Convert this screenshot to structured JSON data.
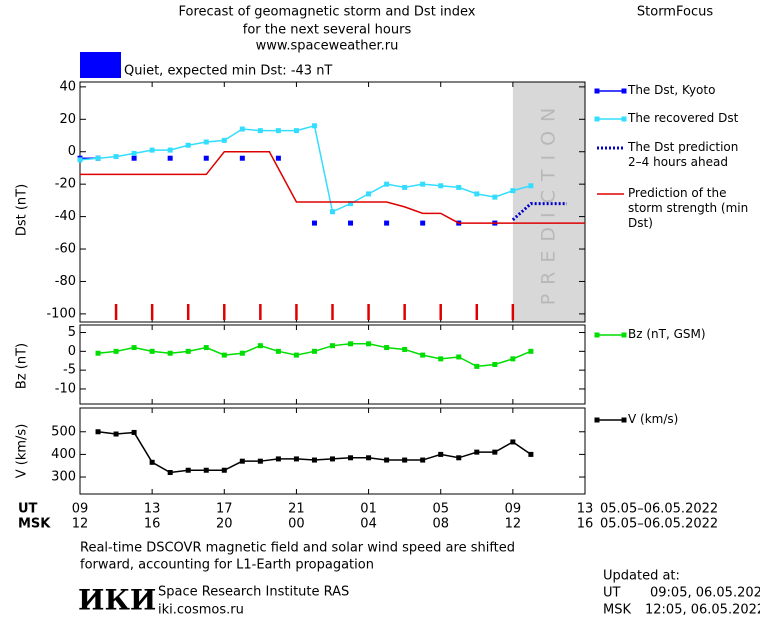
{
  "header": {
    "title": [
      "Forecast of geomagnetic storm and Dst index",
      "for the next several hours",
      "www.spaceweather.ru"
    ],
    "brand": "StormFocus",
    "status": {
      "color": "#0000ff",
      "text": "Quiet, expected min Dst: -43 nT"
    }
  },
  "chart_data": [
    {
      "type": "line",
      "ylabel": "Dst (nT)",
      "ylim": [
        -105,
        43
      ],
      "yticks": [
        40,
        20,
        0,
        -20,
        -40,
        -60,
        -80,
        -100
      ],
      "shade": {
        "x": [
          24,
          28
        ],
        "color": "#d8d8d8",
        "label": "PREDICTION"
      },
      "markers": {
        "color": "#dd0000",
        "x": [
          2,
          4,
          6,
          8,
          10,
          12,
          14,
          16,
          18,
          20,
          22,
          24
        ]
      },
      "series": [
        {
          "name": "The Dst, Kyoto",
          "color": "#0000ff",
          "marker": true,
          "x": [
            0,
            1,
            2,
            3,
            4,
            5,
            6,
            7,
            8,
            9,
            10,
            11,
            12,
            13,
            14,
            15,
            16,
            17,
            18,
            19,
            20,
            21,
            22,
            23
          ],
          "values": [
            -4,
            -4,
            null,
            -4,
            null,
            -4,
            null,
            -4,
            null,
            -4,
            null,
            -4,
            null,
            -44,
            null,
            -44,
            null,
            -44,
            null,
            -44,
            null,
            -44,
            null,
            -44
          ]
        },
        {
          "name": "The recovered Dst",
          "color": "#33ddff",
          "marker": true,
          "x": [
            0,
            1,
            2,
            3,
            4,
            5,
            6,
            7,
            8,
            9,
            10,
            11,
            12,
            13,
            14,
            15,
            16,
            17,
            18,
            19,
            20,
            21,
            22,
            23,
            24,
            25
          ],
          "values": [
            -5,
            -4,
            -3,
            -1,
            1,
            1,
            4,
            6,
            7,
            14,
            13,
            13,
            13,
            16,
            -37,
            -32,
            -26,
            -20,
            -22,
            -20,
            -21,
            -22,
            -26,
            -28,
            -24,
            -21
          ]
        },
        {
          "name": "The Dst prediction\n2–4 hours ahead",
          "color": "#0000cc",
          "dash": true,
          "x": [
            24,
            25,
            26,
            27
          ],
          "values": [
            -42,
            -32,
            -32,
            -32
          ]
        },
        {
          "name": "Prediction of the storm strength (min Dst)",
          "color": "#dd0000",
          "x": [
            0,
            7,
            8,
            10.5,
            12,
            17,
            18,
            19,
            20,
            21,
            28
          ],
          "values": [
            -14,
            -14,
            0,
            0,
            -31,
            -31,
            -34,
            -38,
            -38,
            -44,
            -44
          ]
        }
      ]
    },
    {
      "type": "line",
      "ylabel": "Bz (nT)",
      "ylim": [
        -14,
        7
      ],
      "yticks": [
        5,
        0,
        -5,
        -10
      ],
      "series": [
        {
          "name": "Bz (nT, GSM)",
          "color": "#00dd00",
          "marker": true,
          "x": [
            1,
            2,
            3,
            4,
            5,
            6,
            7,
            8,
            9,
            10,
            11,
            12,
            13,
            14,
            15,
            16,
            17,
            18,
            19,
            20,
            21,
            22,
            23,
            24,
            25
          ],
          "values": [
            -0.5,
            0,
            1,
            0,
            -0.5,
            0,
            1,
            -1,
            -0.5,
            1.5,
            0,
            -1,
            0,
            1.5,
            2,
            2,
            1,
            0.5,
            -1,
            -2,
            -1.5,
            -4,
            -3.5,
            -2,
            0
          ]
        }
      ]
    },
    {
      "type": "line",
      "ylabel": "V (km/s)",
      "ylim": [
        225,
        605
      ],
      "yticks": [
        500,
        400,
        300
      ],
      "xlim": [
        0,
        28
      ],
      "xlabels": [
        "UT",
        "MSK"
      ],
      "xdate": "05.05–06.05.2022",
      "xticks": [
        {
          "value": 0,
          "label": "09"
        },
        {
          "value": 4,
          "label": "13"
        },
        {
          "value": 8,
          "label": "17"
        },
        {
          "value": 12,
          "label": "21"
        },
        {
          "value": 16,
          "label": "01"
        },
        {
          "value": 20,
          "label": "05"
        },
        {
          "value": 24,
          "label": "09"
        },
        {
          "value": 28,
          "label": "13"
        }
      ],
      "xticks_msk": [
        {
          "value": 0,
          "label": "12"
        },
        {
          "value": 4,
          "label": "16"
        },
        {
          "value": 8,
          "label": "20"
        },
        {
          "value": 12,
          "label": "00"
        },
        {
          "value": 16,
          "label": "04"
        },
        {
          "value": 20,
          "label": "08"
        },
        {
          "value": 24,
          "label": "12"
        },
        {
          "value": 28,
          "label": "16"
        }
      ],
      "series": [
        {
          "name": "V (km/s)",
          "color": "#000000",
          "marker": true,
          "x": [
            1,
            2,
            3,
            4,
            5,
            6,
            7,
            8,
            9,
            10,
            11,
            12,
            13,
            14,
            15,
            16,
            17,
            18,
            19,
            20,
            21,
            22,
            23,
            24,
            25
          ],
          "values": [
            500,
            490,
            497,
            365,
            320,
            330,
            330,
            330,
            370,
            370,
            380,
            380,
            375,
            380,
            385,
            385,
            375,
            375,
            375,
            400,
            385,
            410,
            410,
            455,
            400
          ]
        }
      ]
    }
  ],
  "footer": {
    "note": [
      "Real-time DSCOVR magnetic field and solar wind speed are shifted",
      "forward, accounting for L1-Earth propagation"
    ],
    "institute": {
      "logo": "ИКИ",
      "name": "Space Research Institute RAS",
      "url": "iki.cosmos.ru"
    },
    "updated": {
      "label": "Updated at:",
      "ut_label": "UT",
      "ut_time": "09:05, 06.05.2022",
      "msk_label": "MSK",
      "msk_time": "12:05, 06.05.2022"
    }
  }
}
